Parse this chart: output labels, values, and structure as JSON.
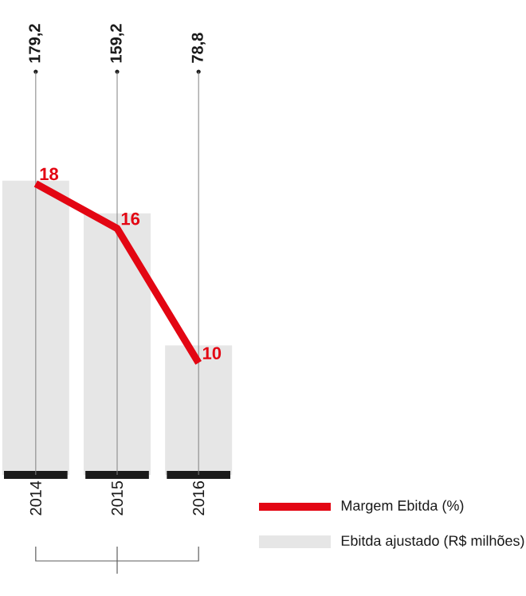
{
  "chart_data": {
    "type": "bar",
    "categories": [
      "2014",
      "2015",
      "2016"
    ],
    "series": [
      {
        "name": "Margem Ebitda (%)",
        "type": "line",
        "axis": "y2",
        "color": "#e30613",
        "values": [
          18,
          16,
          10
        ],
        "value_labels": [
          "18",
          "16",
          "10"
        ]
      },
      {
        "name": "Ebitda ajustado (R$ milhões)",
        "color": "#e6e6e6",
        "values": [
          179.2,
          159.2,
          78.8
        ],
        "value_labels": [
          "179,2",
          "159,2",
          "78,8"
        ]
      }
    ],
    "grid": "x",
    "legend": "bottom right",
    "tick_labels": "x",
    "marker": "none"
  }
}
